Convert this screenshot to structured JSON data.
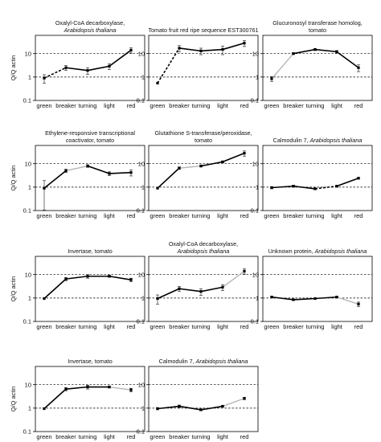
{
  "figure": {
    "y_axis_label": "Q/Q actin",
    "categories": [
      "green",
      "breaker",
      "turning",
      "light",
      "red"
    ],
    "y_ticks": [
      "0.1",
      "1",
      "10"
    ],
    "scale": "log",
    "colors": {
      "solid": "#000000",
      "light": "#b5b5b5"
    }
  },
  "chart_data": [
    {
      "type": "line",
      "title_lines": [
        "Oxalyl-CoA decarboxylase,",
        "Arabidopsis thaliana"
      ],
      "italic_line": 1,
      "categories": [
        "green",
        "breaker",
        "turning",
        "light",
        "red"
      ],
      "values": [
        0.9,
        2.5,
        1.9,
        2.9,
        14
      ],
      "errors": [
        0.35,
        0.6,
        0.6,
        0.8,
        3.5
      ],
      "segments": [
        "dashed",
        "solid",
        "solid",
        "solid"
      ],
      "ylim": [
        0.1,
        60
      ],
      "ylabel": "Q/Q actin",
      "y_scale": "log",
      "grid": "dashed at 1 and 10"
    },
    {
      "type": "line",
      "title_lines": [
        "Tomato fruit red ripe sequence EST300761"
      ],
      "italic_line": -1,
      "categories": [
        "green",
        "breaker",
        "turning",
        "light",
        "red"
      ],
      "values": [
        0.55,
        17,
        13,
        15,
        28
      ],
      "errors": [
        0,
        5,
        4,
        6,
        8
      ],
      "segments": [
        "dashed",
        "solid",
        "solid",
        "solid"
      ],
      "ylim": [
        0.1,
        60
      ],
      "ylabel": "",
      "y_scale": "log",
      "grid": "dashed at 1 and 10"
    },
    {
      "type": "line",
      "title_lines": [
        "Glucuronosyl transferase homolog,",
        "tomato"
      ],
      "italic_line": -1,
      "categories": [
        "green",
        "breaker",
        "turning",
        "light",
        "red"
      ],
      "values": [
        0.85,
        10,
        15,
        12,
        2.5
      ],
      "errors": [
        0.2,
        0.8,
        1.5,
        1.5,
        0.8
      ],
      "segments": [
        "light",
        "solid",
        "solid",
        "solid"
      ],
      "ylim": [
        0.1,
        60
      ],
      "ylabel": "",
      "y_scale": "log",
      "grid": "dashed at 1 and 10"
    },
    {
      "type": "line",
      "title_lines": [
        "Ethylene-responsive transcriptional",
        "coactivator, tomato"
      ],
      "italic_line": -1,
      "categories": [
        "green",
        "breaker",
        "turning",
        "light",
        "red"
      ],
      "values": [
        0.9,
        5,
        8,
        3.8,
        4.2
      ],
      "errors": [
        1,
        0.8,
        1,
        0.7,
        1.2
      ],
      "segments": [
        "solid",
        "light",
        "solid",
        "solid"
      ],
      "ylim": [
        0.1,
        60
      ],
      "ylabel": "Q/Q actin",
      "y_scale": "log",
      "grid": "dashed at 1 and 10"
    },
    {
      "type": "line",
      "title_lines": [
        "Glutathione S-transferase/peroxidase,",
        "tomato"
      ],
      "italic_line": -1,
      "categories": [
        "green",
        "breaker",
        "turning",
        "light",
        "red"
      ],
      "values": [
        0.9,
        6.5,
        8,
        12,
        28
      ],
      "errors": [
        0,
        0.8,
        0.8,
        1,
        7
      ],
      "segments": [
        "solid",
        "light",
        "solid",
        "solid"
      ],
      "ylim": [
        0.1,
        60
      ],
      "ylabel": "",
      "y_scale": "log",
      "grid": "dashed at 1 and 10"
    },
    {
      "type": "line",
      "title_lines": [
        "Calmodulin 7, Arabidopsis thaliana"
      ],
      "italic_line": -1,
      "italic_phrase": "Arabidopsis thaliana",
      "categories": [
        "green",
        "breaker",
        "turning",
        "light",
        "red"
      ],
      "values": [
        0.95,
        1.1,
        0.85,
        1.1,
        2.4
      ],
      "errors": [
        0.1,
        0.1,
        0.08,
        0.1,
        0.2
      ],
      "segments": [
        "solid",
        "solid",
        "dashed",
        "solid"
      ],
      "ylim": [
        0.1,
        60
      ],
      "ylabel": "",
      "y_scale": "log",
      "grid": "dashed at 1 and 10"
    },
    {
      "type": "line",
      "title_lines": [
        "Invertase, tomato"
      ],
      "italic_line": -1,
      "categories": [
        "green",
        "breaker",
        "turning",
        "light",
        "red"
      ],
      "values": [
        0.95,
        6.5,
        8.5,
        8.5,
        6
      ],
      "errors": [
        0,
        1,
        1.5,
        0.8,
        1
      ],
      "segments": [
        "solid",
        "solid",
        "solid",
        "solid"
      ],
      "ylim": [
        0.1,
        60
      ],
      "ylabel": "Q/Q actin",
      "y_scale": "log",
      "grid": "dashed at 1 and 10"
    },
    {
      "type": "line",
      "title_lines": [
        "Oxalyl-CoA decarboxylase,",
        "Arabidopsis thaliana"
      ],
      "italic_line": 1,
      "categories": [
        "green",
        "breaker",
        "turning",
        "light",
        "red"
      ],
      "values": [
        0.95,
        2.5,
        1.9,
        2.9,
        14
      ],
      "errors": [
        0.4,
        0.6,
        0.6,
        0.8,
        3.5
      ],
      "segments": [
        "solid",
        "solid",
        "solid",
        "light"
      ],
      "ylim": [
        0.1,
        60
      ],
      "ylabel": "",
      "y_scale": "log",
      "grid": "dashed at 1 and 10"
    },
    {
      "type": "line",
      "title_lines": [
        "Unknown protein, Arabidopsis thaliana"
      ],
      "italic_line": -1,
      "italic_phrase": "Arabidopsis thaliana",
      "categories": [
        "green",
        "breaker",
        "turning",
        "light",
        "red"
      ],
      "values": [
        1.1,
        0.85,
        0.95,
        1.1,
        0.55
      ],
      "errors": [
        0.08,
        0.05,
        0.05,
        0.08,
        0.12
      ],
      "segments": [
        "solid",
        "solid",
        "solid",
        "light"
      ],
      "ylim": [
        0.1,
        60
      ],
      "ylabel": "",
      "y_scale": "log",
      "grid": "dashed at 1 and 10"
    },
    {
      "type": "line",
      "title_lines": [
        "Invertase, tomato"
      ],
      "italic_line": -1,
      "categories": [
        "green",
        "breaker",
        "turning",
        "light",
        "red"
      ],
      "values": [
        0.95,
        6.5,
        8,
        8,
        6
      ],
      "errors": [
        0,
        1,
        1.5,
        0.8,
        1
      ],
      "segments": [
        "solid",
        "solid",
        "solid",
        "light"
      ],
      "ylim": [
        0.1,
        60
      ],
      "ylabel": "Q/Q actin",
      "y_scale": "log",
      "grid": "dashed at 1 and 10"
    },
    {
      "type": "line",
      "title_lines": [
        "Calmodulin 7, Arabidopsis thaliana"
      ],
      "italic_line": -1,
      "italic_phrase": "Arabidopsis thaliana",
      "categories": [
        "green",
        "breaker",
        "turning",
        "light",
        "red"
      ],
      "values": [
        0.95,
        1.2,
        0.85,
        1.2,
        2.6
      ],
      "errors": [
        0.1,
        0.15,
        0.08,
        0.1,
        0.3
      ],
      "segments": [
        "solid",
        "solid",
        "solid",
        "light"
      ],
      "ylim": [
        0.1,
        60
      ],
      "ylabel": "",
      "y_scale": "log",
      "grid": "dashed at 1 and 10"
    }
  ]
}
